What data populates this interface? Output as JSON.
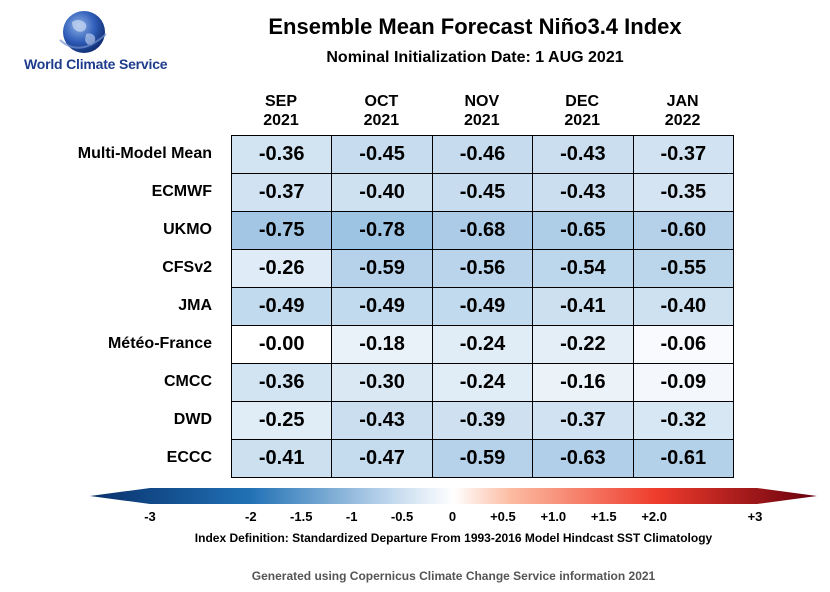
{
  "brand": {
    "name": "World Climate Service",
    "icon": "globe-icon"
  },
  "chart_data": {
    "type": "heatmap",
    "title": "Ensemble Mean Forecast Niño3.4 Index",
    "subtitle": "Nominal Initialization Date: 1 AUG 2021",
    "columns": [
      {
        "month": "SEP",
        "year": "2021"
      },
      {
        "month": "OCT",
        "year": "2021"
      },
      {
        "month": "NOV",
        "year": "2021"
      },
      {
        "month": "DEC",
        "year": "2021"
      },
      {
        "month": "JAN",
        "year": "2022"
      }
    ],
    "rows": [
      {
        "model": "Multi-Model Mean",
        "values": [
          "-0.36",
          "-0.45",
          "-0.46",
          "-0.43",
          "-0.37"
        ]
      },
      {
        "model": "ECMWF",
        "values": [
          "-0.37",
          "-0.40",
          "-0.45",
          "-0.43",
          "-0.35"
        ]
      },
      {
        "model": "UKMO",
        "values": [
          "-0.75",
          "-0.78",
          "-0.68",
          "-0.65",
          "-0.60"
        ]
      },
      {
        "model": "CFSv2",
        "values": [
          "-0.26",
          "-0.59",
          "-0.56",
          "-0.54",
          "-0.55"
        ]
      },
      {
        "model": "JMA",
        "values": [
          "-0.49",
          "-0.49",
          "-0.49",
          "-0.41",
          "-0.40"
        ]
      },
      {
        "model": "Météo-France",
        "values": [
          "-0.00",
          "-0.18",
          "-0.24",
          "-0.22",
          "-0.06"
        ]
      },
      {
        "model": "CMCC",
        "values": [
          "-0.36",
          "-0.30",
          "-0.24",
          "-0.16",
          "-0.09"
        ]
      },
      {
        "model": "DWD",
        "values": [
          "-0.25",
          "-0.43",
          "-0.39",
          "-0.37",
          "-0.32"
        ]
      },
      {
        "model": "ECCC",
        "values": [
          "-0.41",
          "-0.47",
          "-0.59",
          "-0.63",
          "-0.61"
        ]
      }
    ],
    "colorbar": {
      "range": [
        -3,
        3
      ],
      "ticks": [
        {
          "value": -3,
          "label": "-3"
        },
        {
          "value": -2,
          "label": "-2"
        },
        {
          "value": -1.5,
          "label": "-1.5"
        },
        {
          "value": -1,
          "label": "-1"
        },
        {
          "value": -0.5,
          "label": "-0.5"
        },
        {
          "value": 0,
          "label": "0"
        },
        {
          "value": 0.5,
          "label": "+0.5"
        },
        {
          "value": 1,
          "label": "+1.0"
        },
        {
          "value": 1.5,
          "label": "+1.5"
        },
        {
          "value": 2,
          "label": "+2.0"
        },
        {
          "value": 3,
          "label": "+3"
        }
      ],
      "colors": {
        "cold_end": "#08306b",
        "cold_mid": "#2171b5",
        "neutral": "#ffffff",
        "warm_mid": "#ef3b2c",
        "warm_end": "#67000d"
      }
    }
  },
  "index_definition": "Index Definition: Standardized Departure From 1993-2016 Model Hindcast SST Climatology",
  "footer": "Generated using Copernicus Climate Change Service information 2021"
}
